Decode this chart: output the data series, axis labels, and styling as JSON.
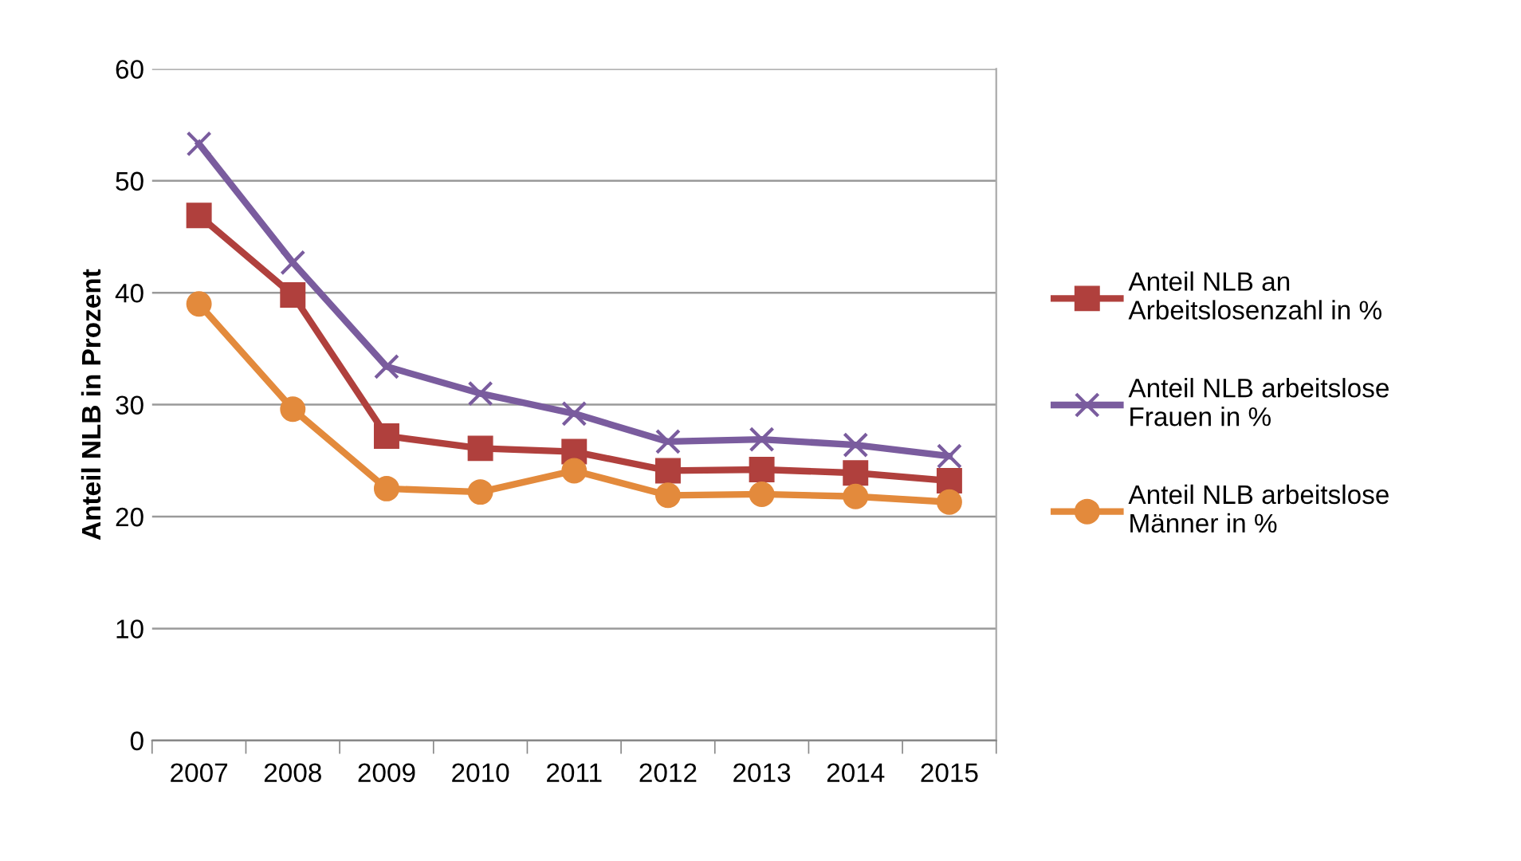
{
  "chart_data": {
    "type": "line",
    "ylabel": "Anteil NLB in Prozent",
    "categories": [
      "2007",
      "2008",
      "2009",
      "2010",
      "2011",
      "2012",
      "2013",
      "2014",
      "2015"
    ],
    "series": [
      {
        "name": "Anteil NLB an Arbeitslosenzahl in %",
        "color": "#b0403d",
        "marker": "square",
        "values": [
          46.9,
          39.8,
          27.2,
          26.1,
          25.8,
          24.1,
          24.2,
          23.9,
          23.2
        ]
      },
      {
        "name": "Anteil NLB arbeitslose Frauen in %",
        "color": "#7a5c9e",
        "marker": "cross",
        "values": [
          53.3,
          42.7,
          33.4,
          31.0,
          29.2,
          26.7,
          26.9,
          26.4,
          25.4
        ]
      },
      {
        "name": "Anteil NLB arbeitslose Männer in %",
        "color": "#e38a3c",
        "marker": "circle",
        "values": [
          39.0,
          29.6,
          22.5,
          22.2,
          24.1,
          21.9,
          22.0,
          21.8,
          21.3
        ]
      }
    ],
    "ylim": [
      0,
      60
    ],
    "yticks": [
      0,
      10,
      20,
      30,
      40,
      50,
      60
    ],
    "grid": "y",
    "legend": "right",
    "line_style": "solid"
  }
}
